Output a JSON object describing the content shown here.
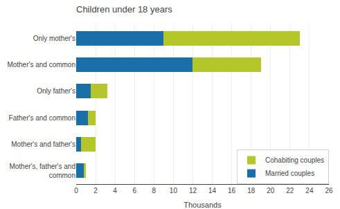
{
  "chart_data": {
    "type": "bar",
    "orientation": "horizontal",
    "stacked": true,
    "title": "Children under 18 years",
    "categories": [
      "Only mother's",
      "Mother's and common",
      "Only father's",
      "Father's and common",
      "Mother's and father's",
      "Mother's, father's and\ncommon"
    ],
    "series": [
      {
        "name": "Married couples",
        "color": "#1a6fa8",
        "values": [
          9.0,
          12.0,
          1.5,
          1.2,
          0.5,
          0.8
        ]
      },
      {
        "name": "Cohabiting couples",
        "color": "#b5c62b",
        "values": [
          14.0,
          7.0,
          1.7,
          0.8,
          1.5,
          0.2
        ]
      }
    ],
    "xlabel": "Thousands",
    "xlim": [
      0,
      26
    ],
    "xticks": [
      0,
      2,
      4,
      6,
      8,
      10,
      12,
      14,
      16,
      18,
      20,
      22,
      24,
      26
    ],
    "grid": true,
    "legend": "lower right"
  }
}
